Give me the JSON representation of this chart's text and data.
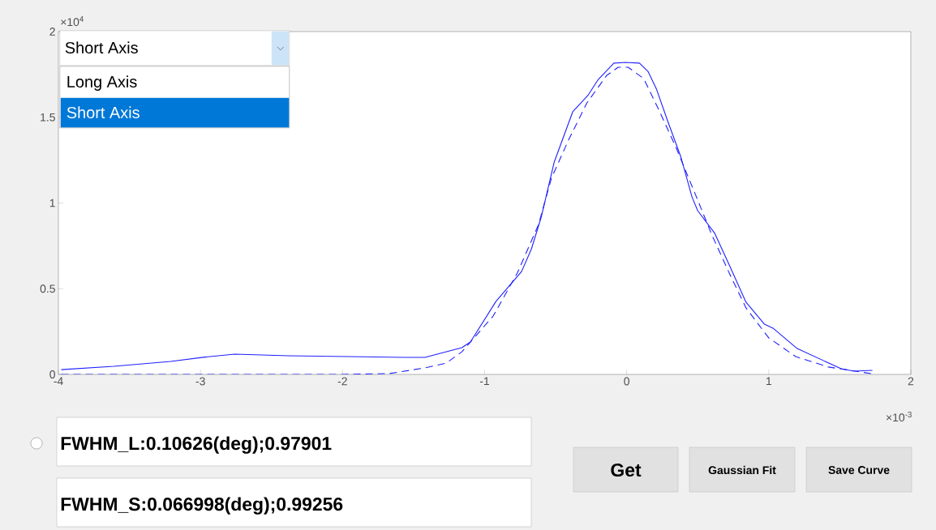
{
  "chart_data": {
    "type": "line",
    "xlim": [
      -4,
      2
    ],
    "ylim": [
      0,
      2
    ],
    "xticks": [
      -4,
      -3,
      -2,
      -1,
      0,
      1,
      2
    ],
    "yticks": [
      0,
      0.5,
      1,
      1.5,
      2
    ],
    "grid": false,
    "series": [
      {
        "color": "#2020ff",
        "line_style": "solid",
        "x": [
          -3.98,
          -3.61,
          -3.21,
          -2.98,
          -2.76,
          -2.38,
          -1.96,
          -1.56,
          -1.42,
          -1.16,
          -1.1,
          -0.92,
          -0.74,
          -0.67,
          -0.6,
          -0.51,
          -0.38,
          -0.27,
          -0.2,
          -0.09,
          -0.01,
          0.09,
          0.15,
          0.21,
          0.29,
          0.38,
          0.46,
          0.5,
          0.62,
          0.73,
          0.84,
          0.97,
          1.03,
          1.2,
          1.51,
          1.6,
          1.73
        ],
        "values": [
          0.028,
          0.047,
          0.076,
          0.1,
          0.118,
          0.109,
          0.104,
          0.099,
          0.099,
          0.156,
          0.189,
          0.426,
          0.6,
          0.733,
          0.922,
          1.239,
          1.532,
          1.631,
          1.721,
          1.816,
          1.82,
          1.816,
          1.768,
          1.664,
          1.475,
          1.272,
          1.035,
          0.955,
          0.823,
          0.624,
          0.421,
          0.293,
          0.27,
          0.151,
          0.033,
          0.019,
          0.024
        ]
      },
      {
        "color": "#2020ff",
        "line_style": "dashed",
        "x": [
          -3.98,
          -2,
          -1.67,
          -1.42,
          -1.27,
          -1.16,
          -0.94,
          -0.77,
          -0.62,
          -0.53,
          -0.41,
          -0.28,
          -0.14,
          -0.06,
          0.01,
          0.12,
          0.23,
          0.35,
          0.5,
          0.6,
          0.73,
          0.84,
          1.0,
          1.19,
          1.42,
          1.72
        ],
        "values": [
          0,
          0,
          0.005,
          0.038,
          0.066,
          0.132,
          0.34,
          0.591,
          0.875,
          1.144,
          1.366,
          1.584,
          1.745,
          1.792,
          1.792,
          1.726,
          1.537,
          1.319,
          1.017,
          0.813,
          0.577,
          0.388,
          0.213,
          0.104,
          0.043,
          0.005
        ]
      }
    ],
    "annotations": [
      "×10$^{4}$",
      "×10$^{-3}$",
      "Short Axis",
      "Long Axis",
      "Short Axis",
      "FWHM_L:0.10626(deg);0.97901",
      "FWHM_S:0.066998(deg);0.99256",
      "Get",
      "Gaussian Fit",
      "Save Curve"
    ]
  }
}
